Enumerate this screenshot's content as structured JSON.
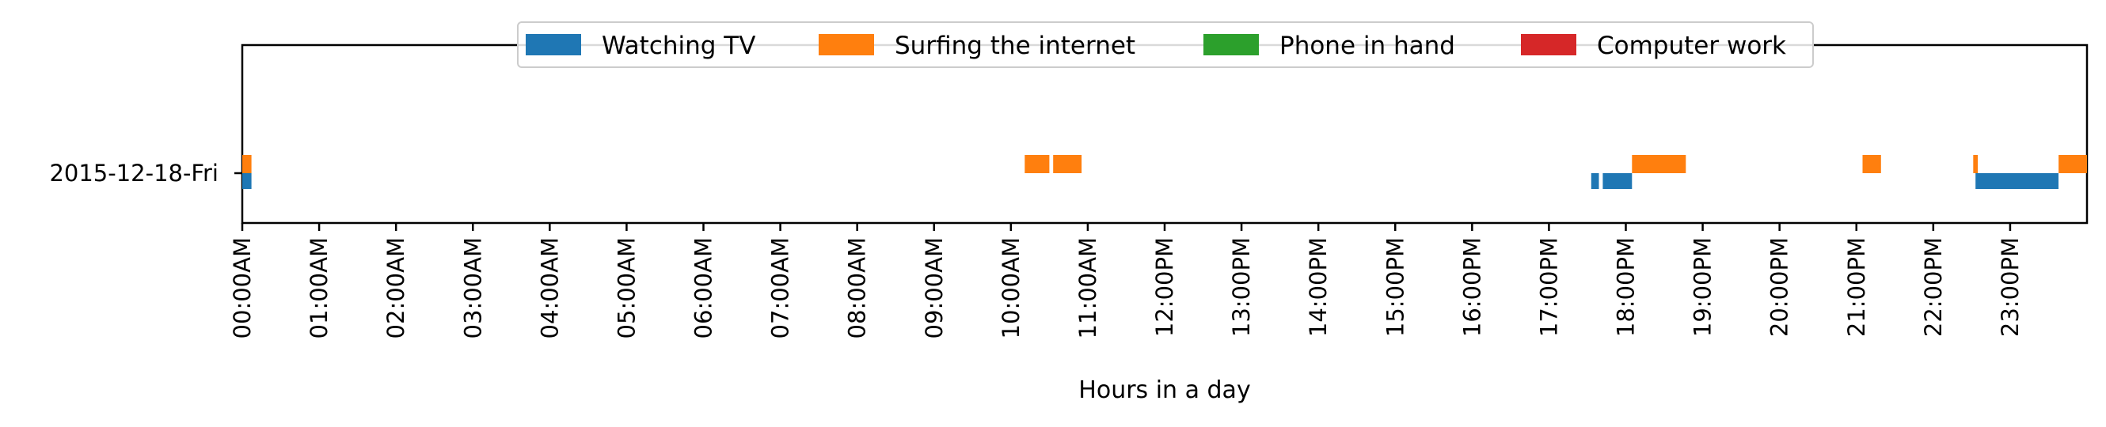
{
  "chart_data": {
    "type": "timeline",
    "title": "",
    "xlabel": "Hours in a day",
    "ylabel": "",
    "x_unit": "hours",
    "xlim": [
      0,
      24
    ],
    "x_tick_values": [
      0,
      1,
      2,
      3,
      4,
      5,
      6,
      7,
      8,
      9,
      10,
      11,
      12,
      13,
      14,
      15,
      16,
      17,
      18,
      19,
      20,
      21,
      22,
      23
    ],
    "x_tick_labels": [
      "00:00AM",
      "01:00AM",
      "02:00AM",
      "03:00AM",
      "04:00AM",
      "05:00AM",
      "06:00AM",
      "07:00AM",
      "08:00AM",
      "09:00AM",
      "10:00AM",
      "11:00AM",
      "12:00PM",
      "13:00PM",
      "14:00PM",
      "15:00PM",
      "16:00PM",
      "17:00PM",
      "18:00PM",
      "19:00PM",
      "20:00PM",
      "21:00PM",
      "22:00PM",
      "23:00PM"
    ],
    "rows": [
      "2015-12-18-Fri"
    ],
    "grid": false,
    "legend_position": "top-center",
    "series": [
      {
        "name": "Watching TV",
        "color": "#1f77b4",
        "intervals": [
          [
            0.0,
            0.12
          ],
          [
            17.55,
            17.65
          ],
          [
            17.7,
            18.08
          ],
          [
            22.55,
            23.63
          ]
        ]
      },
      {
        "name": "Surfing the internet",
        "color": "#ff7f0e",
        "intervals": [
          [
            0.0,
            0.12
          ],
          [
            10.18,
            10.5
          ],
          [
            10.55,
            10.92
          ],
          [
            18.08,
            18.78
          ],
          [
            21.08,
            21.32
          ],
          [
            22.52,
            22.58
          ],
          [
            23.63,
            24.0
          ]
        ]
      },
      {
        "name": "Phone in hand",
        "color": "#2ca02c",
        "intervals": []
      },
      {
        "name": "Computer work",
        "color": "#d62728",
        "intervals": []
      }
    ]
  }
}
